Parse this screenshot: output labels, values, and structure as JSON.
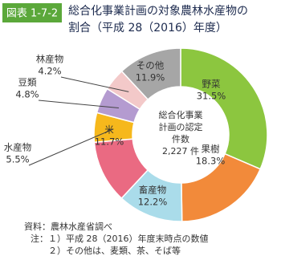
{
  "chart_data": {
    "type": "donut",
    "figure_label": "図表 1-7-2",
    "title_lines": [
      "総合化事業計画の対象農林水産物の",
      "割合（平成 28（2016）年度）"
    ],
    "center_text": [
      "総合化事業",
      "計画の認定",
      "件数",
      "2,227 件"
    ],
    "categories": [
      "野菜",
      "果樹",
      "畜産物",
      "米",
      "水産物",
      "豆類",
      "林産物",
      "その他"
    ],
    "values": [
      31.5,
      18.3,
      12.2,
      11.7,
      5.5,
      4.8,
      4.2,
      11.9
    ],
    "value_labels": [
      "31.5%",
      "18.3%",
      "12.2%",
      "11.7%",
      "5.5%",
      "4.8%",
      "4.2%",
      "11.9%"
    ],
    "colors": [
      "#8cc63f",
      "#f28a3a",
      "#aadcea",
      "#ea6a82",
      "#f6b81c",
      "#b49bd0",
      "#f3c9c9",
      "#a6a6a6"
    ],
    "source": "資料：農林水産省調べ",
    "notes_label": "注：",
    "notes": [
      "１）平成 28（2016）年度末時点の数値",
      "２）その他は、麦類、茶、そば等"
    ]
  }
}
